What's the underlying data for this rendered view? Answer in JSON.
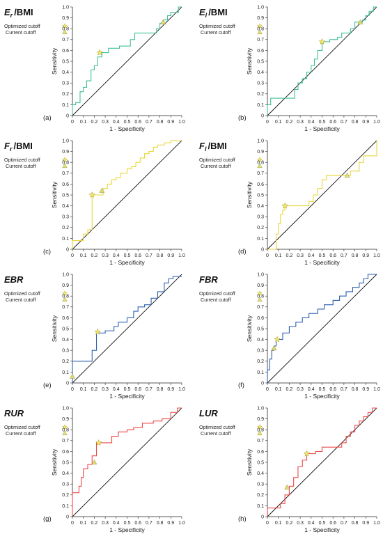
{
  "figure": {
    "legend": {
      "optimized_label": "Optimized cutoff",
      "current_label": "Current cutoff",
      "star_color": "#f2ec6e",
      "triangle_color": "#dfe07a"
    },
    "diagonal_color": "#111111"
  },
  "chart_data": [
    {
      "type": "line",
      "panel_label": "(a)",
      "title": "Er/BMI",
      "title_main": "E",
      "title_sub": "r",
      "title_suffix": "/BMI",
      "xlabel": "1 - Specificity",
      "ylabel": "Sensitivity",
      "xlim": [
        0,
        1
      ],
      "ylim": [
        0,
        1
      ],
      "ticks": [
        "0",
        "0.1",
        "0.2",
        "0.3",
        "0.4",
        "0.5",
        "0.6",
        "0.7",
        "0.8",
        "0.9",
        "1.0"
      ],
      "color": "#3fbf98",
      "series": [
        {
          "x": [
            0,
            0,
            0.03,
            0.03,
            0.07,
            0.07,
            0.1,
            0.1,
            0.13,
            0.13,
            0.17,
            0.17,
            0.2,
            0.2,
            0.23,
            0.23,
            0.27,
            0.27,
            0.3,
            0.3,
            0.33,
            0.33,
            0.37,
            0.37,
            0.4,
            0.4,
            0.43,
            0.43,
            0.47,
            0.47,
            0.5,
            0.5,
            0.53,
            0.53,
            0.57,
            0.57,
            0.6,
            0.6,
            0.63,
            0.63,
            0.67,
            0.67,
            0.7,
            0.7,
            0.73,
            0.73,
            0.77,
            0.77,
            0.8,
            0.8,
            0.83,
            0.83,
            0.87,
            0.87,
            0.9,
            0.9,
            0.93,
            0.93,
            0.97,
            0.97,
            1.0,
            1.0
          ],
          "y": [
            0,
            0.1,
            0.1,
            0.12,
            0.12,
            0.22,
            0.22,
            0.26,
            0.26,
            0.32,
            0.32,
            0.42,
            0.42,
            0.46,
            0.46,
            0.54,
            0.54,
            0.58,
            0.58,
            0.58,
            0.58,
            0.62,
            0.62,
            0.62,
            0.62,
            0.62,
            0.62,
            0.64,
            0.64,
            0.64,
            0.64,
            0.64,
            0.64,
            0.7,
            0.7,
            0.76,
            0.76,
            0.76,
            0.76,
            0.76,
            0.76,
            0.76,
            0.76,
            0.76,
            0.76,
            0.76,
            0.76,
            0.8,
            0.8,
            0.85,
            0.85,
            0.88,
            0.88,
            0.92,
            0.92,
            0.95,
            0.95,
            0.95,
            0.95,
            1.0,
            1.0,
            1.0
          ]
        }
      ],
      "optimized_cutoff": [
        0.25,
        0.58
      ],
      "current_cutoff": [
        0.83,
        0.86
      ]
    },
    {
      "type": "line",
      "panel_label": "(b)",
      "title": "El/BMI",
      "title_main": "E",
      "title_sub": "l",
      "title_suffix": "/BMI",
      "xlabel": "1 - Specificity",
      "ylabel": "Sensitivity",
      "xlim": [
        0,
        1
      ],
      "ylim": [
        0,
        1
      ],
      "ticks": [
        "0",
        "0.1",
        "0.2",
        "0.3",
        "0.4",
        "0.5",
        "0.6",
        "0.7",
        "0.8",
        "0.9",
        "1.0"
      ],
      "color": "#3fbf98",
      "series": [
        {
          "x": [
            0,
            0,
            0.03,
            0.03,
            0.25,
            0.25,
            0.28,
            0.28,
            0.32,
            0.32,
            0.36,
            0.36,
            0.4,
            0.4,
            0.43,
            0.43,
            0.46,
            0.46,
            0.5,
            0.5,
            0.53,
            0.53,
            0.57,
            0.57,
            0.6,
            0.6,
            0.64,
            0.64,
            0.68,
            0.68,
            0.72,
            0.72,
            0.76,
            0.76,
            0.8,
            0.8,
            0.83,
            0.83,
            0.87,
            0.87,
            0.9,
            0.9,
            0.93,
            0.93,
            0.97,
            0.97,
            1.0
          ],
          "y": [
            0,
            0.1,
            0.1,
            0.16,
            0.16,
            0.24,
            0.24,
            0.3,
            0.3,
            0.34,
            0.34,
            0.4,
            0.4,
            0.46,
            0.46,
            0.52,
            0.52,
            0.6,
            0.6,
            0.68,
            0.68,
            0.68,
            0.68,
            0.7,
            0.7,
            0.7,
            0.7,
            0.72,
            0.72,
            0.76,
            0.76,
            0.76,
            0.76,
            0.8,
            0.8,
            0.86,
            0.86,
            0.86,
            0.86,
            0.88,
            0.88,
            0.92,
            0.92,
            0.96,
            0.96,
            1.0,
            1.0
          ]
        }
      ],
      "optimized_cutoff": [
        0.5,
        0.68
      ],
      "current_cutoff": [
        0.85,
        0.86
      ]
    },
    {
      "type": "line",
      "panel_label": "(c)",
      "title": "Fr/BMI",
      "title_main": "F",
      "title_sub": "r",
      "title_suffix": "/BMI",
      "xlabel": "1 - Specificity",
      "ylabel": "Sensitivity",
      "xlim": [
        0,
        1
      ],
      "ylim": [
        0,
        1
      ],
      "ticks": [
        "0",
        "0.1",
        "0.2",
        "0.3",
        "0.4",
        "0.5",
        "0.6",
        "0.7",
        "0.8",
        "0.9",
        "1.0"
      ],
      "color": "#e8d63a",
      "series": [
        {
          "x": [
            0,
            0,
            0.1,
            0.1,
            0.14,
            0.14,
            0.18,
            0.18,
            0.28,
            0.28,
            0.32,
            0.32,
            0.36,
            0.36,
            0.4,
            0.4,
            0.44,
            0.44,
            0.5,
            0.5,
            0.54,
            0.54,
            0.58,
            0.58,
            0.62,
            0.62,
            0.66,
            0.66,
            0.7,
            0.7,
            0.74,
            0.74,
            0.78,
            0.78,
            0.84,
            0.84,
            0.9,
            0.9,
            1.0
          ],
          "y": [
            0,
            0.08,
            0.08,
            0.14,
            0.14,
            0.18,
            0.18,
            0.5,
            0.5,
            0.56,
            0.56,
            0.6,
            0.6,
            0.64,
            0.64,
            0.66,
            0.66,
            0.7,
            0.7,
            0.74,
            0.74,
            0.76,
            0.76,
            0.8,
            0.8,
            0.84,
            0.84,
            0.88,
            0.88,
            0.9,
            0.9,
            0.94,
            0.94,
            0.96,
            0.96,
            0.98,
            0.98,
            1.0,
            1.0
          ]
        }
      ],
      "optimized_cutoff": [
        0.18,
        0.5
      ],
      "current_cutoff": [
        0.27,
        0.54
      ]
    },
    {
      "type": "line",
      "panel_label": "(d)",
      "title": "Fl/BMI",
      "title_main": "F",
      "title_sub": "l",
      "title_suffix": "/BMI",
      "xlabel": "1 - Specificity",
      "ylabel": "Sensitivity",
      "xlim": [
        0,
        1
      ],
      "ylim": [
        0,
        1
      ],
      "ticks": [
        "0",
        "0.1",
        "0.2",
        "0.3",
        "0.4",
        "0.5",
        "0.6",
        "0.7",
        "0.8",
        "0.9",
        "1.0"
      ],
      "color": "#e8d63a",
      "series": [
        {
          "x": [
            0,
            0.08,
            0.08,
            0.1,
            0.1,
            0.12,
            0.12,
            0.14,
            0.14,
            0.16,
            0.16,
            0.38,
            0.38,
            0.42,
            0.42,
            0.46,
            0.46,
            0.5,
            0.5,
            0.54,
            0.54,
            0.7,
            0.7,
            0.76,
            0.76,
            0.84,
            0.84,
            0.88,
            0.88,
            0.92,
            0.92,
            1.0,
            1.0
          ],
          "y": [
            0,
            0,
            0.14,
            0.14,
            0.24,
            0.24,
            0.32,
            0.32,
            0.36,
            0.36,
            0.4,
            0.4,
            0.44,
            0.44,
            0.5,
            0.5,
            0.56,
            0.56,
            0.64,
            0.64,
            0.68,
            0.68,
            0.68,
            0.68,
            0.72,
            0.72,
            0.8,
            0.8,
            0.86,
            0.86,
            0.86,
            0.86,
            1.0
          ]
        }
      ],
      "optimized_cutoff": [
        0.16,
        0.4
      ],
      "current_cutoff": [
        0.73,
        0.68
      ]
    },
    {
      "type": "line",
      "panel_label": "(e)",
      "title": "EBR",
      "title_main": "EBR",
      "title_sub": "",
      "title_suffix": "",
      "xlabel": "1 - Specificity",
      "ylabel": "Sensitivity",
      "xlim": [
        0,
        1
      ],
      "ylim": [
        0,
        1
      ],
      "ticks": [
        "0",
        "0.1",
        "0.2",
        "0.3",
        "0.4",
        "0.5",
        "0.6",
        "0.7",
        "0.8",
        "0.9",
        "1.0"
      ],
      "color": "#2d5fb0",
      "series": [
        {
          "x": [
            0,
            0,
            0.18,
            0.18,
            0.22,
            0.22,
            0.3,
            0.3,
            0.38,
            0.38,
            0.42,
            0.42,
            0.5,
            0.5,
            0.56,
            0.56,
            0.6,
            0.6,
            0.66,
            0.66,
            0.72,
            0.72,
            0.78,
            0.78,
            0.84,
            0.84,
            0.88,
            0.88,
            0.92,
            0.92,
            1.0
          ],
          "y": [
            0,
            0.2,
            0.2,
            0.3,
            0.3,
            0.46,
            0.46,
            0.48,
            0.48,
            0.52,
            0.52,
            0.56,
            0.56,
            0.6,
            0.6,
            0.66,
            0.66,
            0.7,
            0.7,
            0.72,
            0.72,
            0.78,
            0.78,
            0.84,
            0.84,
            0.92,
            0.92,
            0.96,
            0.96,
            0.98,
            0.98
          ]
        }
      ],
      "optimized_cutoff": [
        0.23,
        0.47
      ],
      "current_cutoff": [
        0.0,
        0.06
      ]
    },
    {
      "type": "line",
      "panel_label": "(f)",
      "title": "FBR",
      "title_main": "FBR",
      "title_sub": "",
      "title_suffix": "",
      "xlabel": "1 - Specificity",
      "ylabel": "Sensitivity",
      "xlim": [
        0,
        1
      ],
      "ylim": [
        0,
        1
      ],
      "ticks": [
        "0",
        "0.1",
        "0.2",
        "0.3",
        "0.4",
        "0.5",
        "0.6",
        "0.7",
        "0.8",
        "0.9",
        "1.0"
      ],
      "color": "#2d5fb0",
      "series": [
        {
          "x": [
            0,
            0,
            0.02,
            0.02,
            0.04,
            0.04,
            0.06,
            0.06,
            0.08,
            0.08,
            0.14,
            0.14,
            0.2,
            0.2,
            0.26,
            0.26,
            0.32,
            0.32,
            0.38,
            0.38,
            0.46,
            0.46,
            0.52,
            0.52,
            0.6,
            0.6,
            0.66,
            0.66,
            0.72,
            0.72,
            0.78,
            0.78,
            0.84,
            0.84,
            0.88,
            0.88,
            0.92,
            0.92,
            1.0
          ],
          "y": [
            0,
            0.12,
            0.12,
            0.22,
            0.22,
            0.3,
            0.3,
            0.34,
            0.34,
            0.4,
            0.4,
            0.46,
            0.46,
            0.52,
            0.52,
            0.56,
            0.56,
            0.6,
            0.6,
            0.64,
            0.64,
            0.68,
            0.68,
            0.72,
            0.72,
            0.76,
            0.76,
            0.8,
            0.8,
            0.84,
            0.84,
            0.88,
            0.88,
            0.92,
            0.92,
            0.96,
            0.96,
            1.0,
            1.0
          ]
        }
      ],
      "optimized_cutoff": [
        0.09,
        0.4
      ],
      "current_cutoff": [
        0.06,
        0.32
      ]
    },
    {
      "type": "line",
      "panel_label": "(g)",
      "title": "RUR",
      "title_main": "RUR",
      "title_sub": "",
      "title_suffix": "",
      "xlabel": "1 - Specificity",
      "ylabel": "Sensitivity",
      "xlim": [
        0,
        1
      ],
      "ylim": [
        0,
        1
      ],
      "ticks": [
        "0",
        "0.1",
        "0.2",
        "0.3",
        "0.4",
        "0.5",
        "0.6",
        "0.7",
        "0.8",
        "0.9",
        "1.0"
      ],
      "color": "#ee4747",
      "series": [
        {
          "x": [
            0,
            0,
            0.06,
            0.06,
            0.08,
            0.08,
            0.1,
            0.1,
            0.14,
            0.14,
            0.18,
            0.18,
            0.22,
            0.22,
            0.3,
            0.3,
            0.36,
            0.36,
            0.42,
            0.42,
            0.5,
            0.5,
            0.56,
            0.56,
            0.64,
            0.64,
            0.74,
            0.74,
            0.82,
            0.82,
            0.9,
            0.9,
            0.96,
            0.96,
            1.0
          ],
          "y": [
            0,
            0.22,
            0.22,
            0.28,
            0.28,
            0.36,
            0.36,
            0.44,
            0.44,
            0.48,
            0.48,
            0.56,
            0.56,
            0.68,
            0.68,
            0.68,
            0.68,
            0.74,
            0.74,
            0.78,
            0.78,
            0.8,
            0.8,
            0.82,
            0.82,
            0.86,
            0.86,
            0.88,
            0.88,
            0.9,
            0.9,
            0.96,
            0.96,
            1.0,
            1.0
          ]
        }
      ],
      "optimized_cutoff": [
        0.24,
        0.68
      ],
      "current_cutoff": [
        0.2,
        0.5
      ]
    },
    {
      "type": "line",
      "panel_label": "(h)",
      "title": "LUR",
      "title_main": "LUR",
      "title_sub": "",
      "title_suffix": "",
      "xlabel": "1 - Specificity",
      "ylabel": "Sensitivity",
      "xlim": [
        0,
        1
      ],
      "ylim": [
        0,
        1
      ],
      "ticks": [
        "0",
        "0.1",
        "0.2",
        "0.3",
        "0.4",
        "0.5",
        "0.6",
        "0.7",
        "0.8",
        "0.9",
        "1.0"
      ],
      "color": "#ee4747",
      "series": [
        {
          "x": [
            0,
            0,
            0.12,
            0.12,
            0.16,
            0.16,
            0.2,
            0.2,
            0.24,
            0.24,
            0.28,
            0.28,
            0.32,
            0.32,
            0.36,
            0.36,
            0.44,
            0.44,
            0.5,
            0.5,
            0.6,
            0.6,
            0.68,
            0.68,
            0.72,
            0.72,
            0.76,
            0.76,
            0.8,
            0.8,
            0.84,
            0.84,
            0.88,
            0.88,
            0.92,
            0.92,
            0.96,
            0.96,
            1.0
          ],
          "y": [
            0,
            0.08,
            0.08,
            0.12,
            0.12,
            0.2,
            0.2,
            0.28,
            0.28,
            0.36,
            0.36,
            0.46,
            0.46,
            0.52,
            0.52,
            0.58,
            0.58,
            0.6,
            0.6,
            0.64,
            0.64,
            0.64,
            0.64,
            0.68,
            0.68,
            0.74,
            0.74,
            0.78,
            0.78,
            0.84,
            0.84,
            0.88,
            0.88,
            0.92,
            0.92,
            0.96,
            0.96,
            1.0,
            1.0
          ]
        }
      ],
      "optimized_cutoff": [
        0.36,
        0.58
      ],
      "current_cutoff": [
        0.18,
        0.27
      ]
    }
  ]
}
